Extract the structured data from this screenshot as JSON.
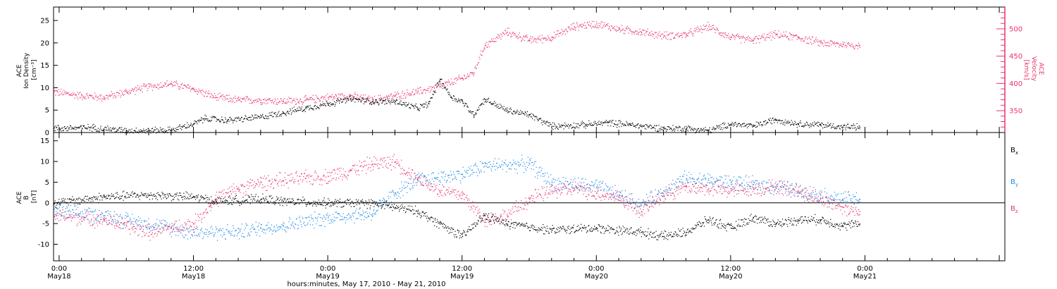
{
  "colors": {
    "black": "#000000",
    "pink": "#e8336a",
    "blue": "#1e88e5",
    "axis": "#000000"
  },
  "bottom_axis": {
    "ticks": [
      {
        "hours": 0,
        "time": "0:00",
        "date": "May18"
      },
      {
        "hours": 12,
        "time": "12:00",
        "date": "May18"
      },
      {
        "hours": 24,
        "time": "0:00",
        "date": "May19"
      },
      {
        "hours": 36,
        "time": "12:00",
        "date": "May19"
      },
      {
        "hours": 48,
        "time": "0:00",
        "date": "May20"
      },
      {
        "hours": 60,
        "time": "12:00",
        "date": "May20"
      },
      {
        "hours": 72,
        "time": "0:00",
        "date": "May21"
      }
    ],
    "label": "hours:minutes, May 17, 2010 - May 21, 2010",
    "range_hours": [
      -0.5,
      84.5
    ]
  },
  "chart_data": [
    {
      "type": "scatter",
      "panel": "top",
      "left_axis": {
        "label_lines": [
          "ACE",
          "Ion Density",
          "[cm⁻³]"
        ],
        "ticks": [
          0,
          5,
          10,
          15,
          20,
          25
        ],
        "ylim": [
          0,
          28
        ],
        "color": "#000000"
      },
      "right_axis": {
        "label_lines": [
          "ACE",
          "Velocity",
          "[km/s]"
        ],
        "ticks": [
          350,
          400,
          450,
          500
        ],
        "ylim": [
          310,
          540
        ],
        "color": "#e8336a"
      },
      "series": [
        {
          "key": "density",
          "axis": "left",
          "color": "#000000",
          "points": [
            [
              -0.5,
              1.0
            ],
            [
              3,
              1.2
            ],
            [
              6,
              0.5
            ],
            [
              10,
              0.6
            ],
            [
              12,
              2.0
            ],
            [
              13,
              3.2
            ],
            [
              15,
              2.8
            ],
            [
              18,
              3.5
            ],
            [
              20,
              4.5
            ],
            [
              22,
              5.5
            ],
            [
              24,
              6.5
            ],
            [
              26,
              7.5
            ],
            [
              28,
              7.0
            ],
            [
              30,
              7.0
            ],
            [
              32,
              5.5
            ],
            [
              33,
              6.5
            ],
            [
              34,
              12.0
            ],
            [
              35,
              8.0
            ],
            [
              36,
              7.0
            ],
            [
              37,
              4.0
            ],
            [
              38,
              7.5
            ],
            [
              40,
              5.0
            ],
            [
              42,
              4.0
            ],
            [
              44,
              1.5
            ],
            [
              47,
              1.8
            ],
            [
              49,
              2.3
            ],
            [
              51,
              1.8
            ],
            [
              54,
              1.0
            ],
            [
              56,
              1.0
            ],
            [
              58,
              0.5
            ],
            [
              60,
              2.0
            ],
            [
              62,
              1.5
            ],
            [
              64,
              3.0
            ],
            [
              66,
              2.0
            ],
            [
              68,
              1.8
            ],
            [
              70,
              1.3
            ],
            [
              71.5,
              1.3
            ]
          ]
        },
        {
          "key": "velocity",
          "axis": "right",
          "color": "#e8336a",
          "points": [
            [
              -0.5,
              385
            ],
            [
              2,
              378
            ],
            [
              4,
              375
            ],
            [
              6,
              385
            ],
            [
              8,
              395
            ],
            [
              10,
              400
            ],
            [
              12,
              390
            ],
            [
              14,
              375
            ],
            [
              16,
              370
            ],
            [
              18,
              370
            ],
            [
              20,
              368
            ],
            [
              22,
              370
            ],
            [
              24,
              375
            ],
            [
              26,
              378
            ],
            [
              28,
              370
            ],
            [
              30,
              378
            ],
            [
              32,
              385
            ],
            [
              34,
              395
            ],
            [
              36,
              410
            ],
            [
              37,
              420
            ],
            [
              38,
              470
            ],
            [
              40,
              495
            ],
            [
              42,
              480
            ],
            [
              44,
              485
            ],
            [
              46,
              505
            ],
            [
              48,
              510
            ],
            [
              50,
              500
            ],
            [
              52,
              495
            ],
            [
              54,
              488
            ],
            [
              56,
              490
            ],
            [
              58,
              505
            ],
            [
              60,
              485
            ],
            [
              62,
              480
            ],
            [
              64,
              490
            ],
            [
              66,
              485
            ],
            [
              68,
              475
            ],
            [
              70,
              472
            ],
            [
              71.5,
              470
            ]
          ]
        }
      ]
    },
    {
      "type": "scatter",
      "panel": "bottom",
      "left_axis": {
        "label_lines": [
          "ACE",
          "B",
          "[nT]"
        ],
        "ticks": [
          -10,
          -5,
          0,
          5,
          10,
          15
        ],
        "ylim": [
          -14,
          17
        ],
        "color": "#000000"
      },
      "legend": [
        {
          "label": "B",
          "subscript": "x",
          "color": "#000000"
        },
        {
          "label": "B",
          "subscript": "y",
          "color": "#1e88e5"
        },
        {
          "label": "B",
          "subscript": "z",
          "color": "#e8336a"
        }
      ],
      "series": [
        {
          "key": "Bx",
          "color": "#000000",
          "points": [
            [
              -0.5,
              0
            ],
            [
              4,
              1.5
            ],
            [
              8,
              2.0
            ],
            [
              12,
              1.5
            ],
            [
              14,
              0.5
            ],
            [
              18,
              1.0
            ],
            [
              20,
              0.5
            ],
            [
              24,
              0
            ],
            [
              28,
              0
            ],
            [
              30,
              -1.0
            ],
            [
              32,
              -2.0
            ],
            [
              34,
              -5.0
            ],
            [
              36,
              -8.0
            ],
            [
              38,
              -3.0
            ],
            [
              40,
              -5.0
            ],
            [
              44,
              -6.5
            ],
            [
              48,
              -6.0
            ],
            [
              52,
              -7.0
            ],
            [
              54,
              -8.0
            ],
            [
              56,
              -7.0
            ],
            [
              58,
              -4.0
            ],
            [
              60,
              -6.0
            ],
            [
              62,
              -3.5
            ],
            [
              64,
              -5.0
            ],
            [
              66,
              -4.0
            ],
            [
              68,
              -4.0
            ],
            [
              70,
              -5.5
            ],
            [
              71.5,
              -5.0
            ]
          ]
        },
        {
          "key": "By",
          "color": "#1e88e5",
          "points": [
            [
              -0.5,
              -2.0
            ],
            [
              4,
              -3.0
            ],
            [
              8,
              -5.0
            ],
            [
              12,
              -7.0
            ],
            [
              16,
              -7.0
            ],
            [
              18,
              -6.0
            ],
            [
              20,
              -5.5
            ],
            [
              24,
              -3.5
            ],
            [
              28,
              -2.5
            ],
            [
              30,
              2.5
            ],
            [
              32,
              5.5
            ],
            [
              36,
              7.0
            ],
            [
              38,
              9.0
            ],
            [
              42,
              9.5
            ],
            [
              44,
              5.0
            ],
            [
              48,
              4.0
            ],
            [
              50,
              2.0
            ],
            [
              52,
              -0.5
            ],
            [
              54,
              3.0
            ],
            [
              56,
              6.0
            ],
            [
              58,
              5.5
            ],
            [
              60,
              5.0
            ],
            [
              62,
              4.5
            ],
            [
              64,
              4.0
            ],
            [
              66,
              3.0
            ],
            [
              68,
              2.0
            ],
            [
              70,
              1.0
            ],
            [
              71.5,
              1.0
            ]
          ]
        },
        {
          "key": "Bz",
          "color": "#e8336a",
          "points": [
            [
              -0.5,
              -3.0
            ],
            [
              4,
              -4.0
            ],
            [
              6,
              -5.5
            ],
            [
              8,
              -7.0
            ],
            [
              10,
              -6.0
            ],
            [
              12,
              -5.0
            ],
            [
              14,
              1.0
            ],
            [
              16,
              3.5
            ],
            [
              18,
              5.0
            ],
            [
              20,
              5.5
            ],
            [
              22,
              6.0
            ],
            [
              24,
              6.5
            ],
            [
              26,
              8.0
            ],
            [
              28,
              9.5
            ],
            [
              30,
              10.0
            ],
            [
              32,
              6.0
            ],
            [
              34,
              3.0
            ],
            [
              36,
              2.0
            ],
            [
              38,
              -4.0
            ],
            [
              40,
              -3.0
            ],
            [
              42,
              1.0
            ],
            [
              44,
              3.0
            ],
            [
              46,
              3.5
            ],
            [
              48,
              2.5
            ],
            [
              50,
              1.5
            ],
            [
              52,
              -2.0
            ],
            [
              54,
              2.0
            ],
            [
              56,
              4.0
            ],
            [
              58,
              3.5
            ],
            [
              60,
              3.0
            ],
            [
              62,
              3.5
            ],
            [
              64,
              4.0
            ],
            [
              66,
              3.0
            ],
            [
              68,
              1.0
            ],
            [
              70,
              -1.0
            ],
            [
              71.5,
              -2.0
            ]
          ]
        }
      ]
    }
  ]
}
